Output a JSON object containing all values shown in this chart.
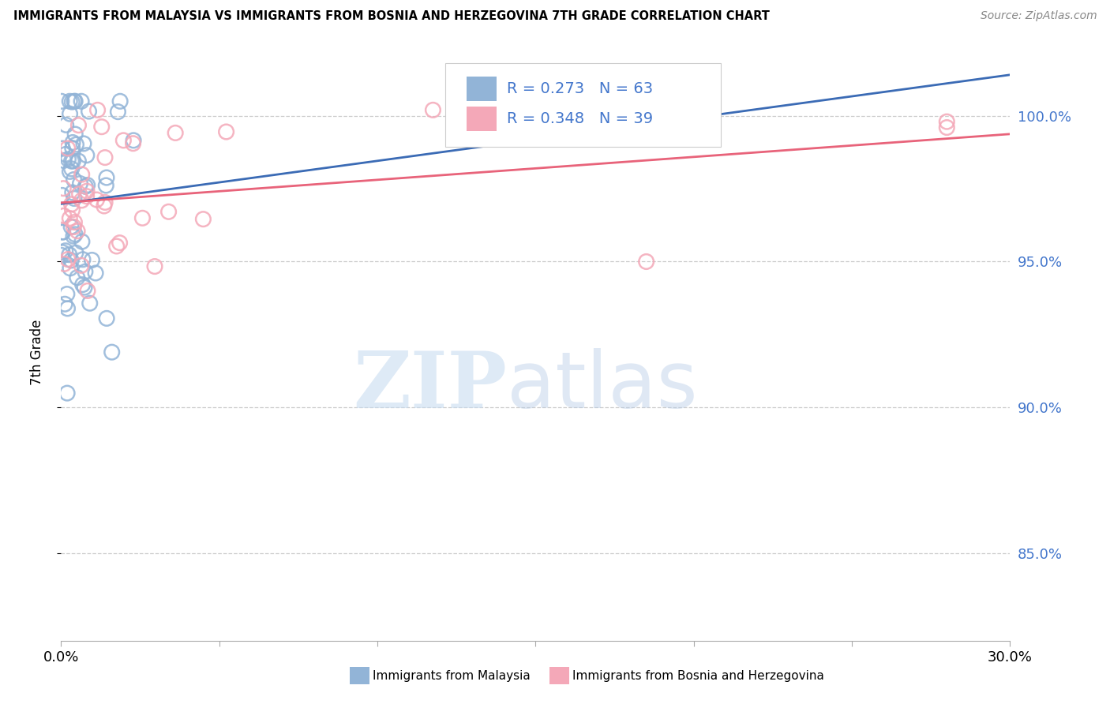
{
  "title": "IMMIGRANTS FROM MALAYSIA VS IMMIGRANTS FROM BOSNIA AND HERZEGOVINA 7TH GRADE CORRELATION CHART",
  "source": "Source: ZipAtlas.com",
  "ylabel": "7th Grade",
  "series1_label": "Immigrants from Malaysia",
  "series2_label": "Immigrants from Bosnia and Herzegovina",
  "R1": "0.273",
  "N1": "63",
  "R2": "0.348",
  "N2": "39",
  "color1": "#92B4D7",
  "color2": "#F4A8B8",
  "trendline1_color": "#3B6BB5",
  "trendline2_color": "#E8637A",
  "text_blue": "#4477CC",
  "xmin": 0.0,
  "xmax": 0.3,
  "ymin": 0.82,
  "ymax": 1.018,
  "yticks": [
    0.85,
    0.9,
    0.95,
    1.0
  ],
  "ytick_labels": [
    "85.0%",
    "90.0%",
    "95.0%",
    "100.0%"
  ],
  "watermark_zip": "ZIP",
  "watermark_atlas": "atlas",
  "background": "#FFFFFF"
}
